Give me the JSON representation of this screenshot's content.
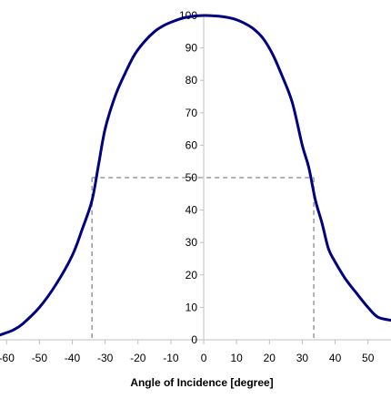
{
  "chart_data": {
    "type": "line",
    "title": "",
    "xlabel": "Angle of Incidence [degree]",
    "ylabel": "",
    "xlim": [
      -62,
      57
    ],
    "ylim": [
      0,
      100
    ],
    "x_ticks": [
      -60,
      -50,
      -40,
      -30,
      -20,
      -10,
      0,
      10,
      20,
      30,
      40,
      50
    ],
    "y_ticks": [
      0,
      10,
      20,
      30,
      40,
      50,
      60,
      70,
      80,
      90,
      100
    ],
    "grid": false,
    "legend": "none",
    "colors": {
      "series": "#000080",
      "guide": "#999999",
      "axis": "#c0c0c0"
    },
    "series": [
      {
        "x": [
          -62,
          -58,
          -55,
          -50,
          -45,
          -40,
          -37,
          -34,
          -32,
          -30,
          -27,
          -24,
          -21,
          -18,
          -15,
          -12,
          -9,
          -6,
          -3,
          0,
          3,
          6,
          9,
          12,
          15,
          18,
          21,
          24,
          27,
          30,
          32,
          34,
          36,
          38,
          40,
          43,
          46,
          50,
          53,
          57
        ],
        "y": [
          1.5,
          3,
          5,
          10,
          17,
          26,
          34,
          43,
          54,
          65,
          75,
          82,
          88,
          92,
          95,
          97,
          98.3,
          99.3,
          99.8,
          100,
          99.9,
          99.6,
          99,
          97.8,
          96,
          93,
          88,
          81,
          73,
          60,
          53,
          43,
          36,
          28,
          24,
          19,
          15,
          10,
          7,
          6
        ]
      }
    ],
    "annotations": [
      {
        "type": "guide",
        "y": 50,
        "x_left": -34,
        "x_right": 33.5
      }
    ]
  }
}
